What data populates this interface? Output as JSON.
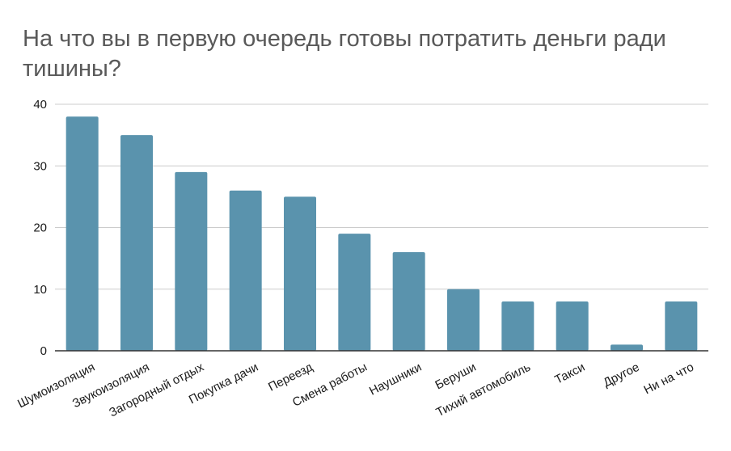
{
  "chart_data": {
    "type": "bar",
    "title": "На что вы в первую очередь готовы потратить деньги ради тишины?",
    "xlabel": "",
    "ylabel": "",
    "categories": [
      "Шумоизоляция",
      "Звукоизоляция",
      "Загородный отдых",
      "Покупка дачи",
      "Переезд",
      "Смена работы",
      "Наушники",
      "Беруши",
      "Тихий автомобиль",
      "Такси",
      "Другое",
      "Ни на что"
    ],
    "values": [
      38,
      35,
      29,
      26,
      25,
      19,
      16,
      10,
      8,
      8,
      1,
      8
    ],
    "ylim": [
      0,
      40
    ],
    "yticks": [
      0,
      10,
      20,
      30,
      40
    ],
    "grid": true,
    "legend": "none",
    "colors": {
      "bar": "#5a93ad",
      "grid": "#cccccc",
      "axis": "#333333",
      "title": "#595959"
    }
  }
}
